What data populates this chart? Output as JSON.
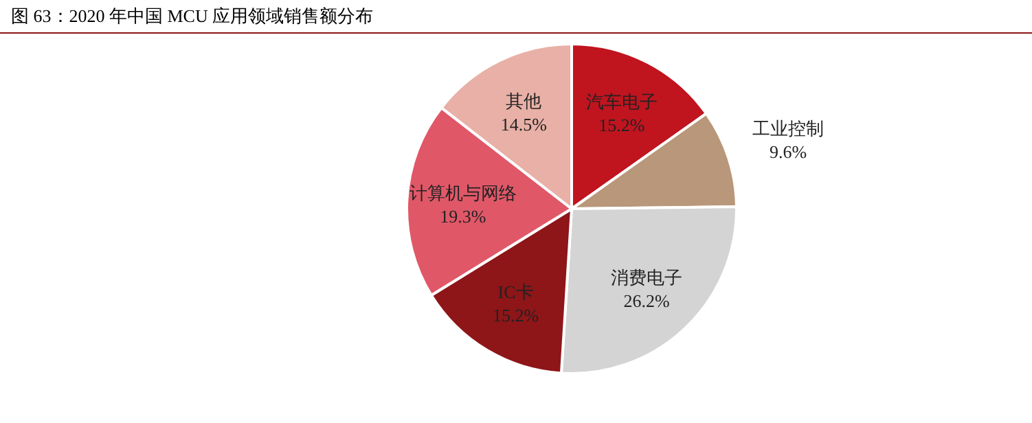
{
  "chart_data": {
    "type": "pie",
    "title": "图 63：2020 年中国 MCU 应用领域销售额分布",
    "categories": [
      "汽车电子",
      "工业控制",
      "消费电子",
      "IC卡",
      "计算机与网络",
      "其他"
    ],
    "values": [
      15.2,
      9.6,
      26.2,
      15.2,
      19.3,
      14.5
    ],
    "value_labels": [
      "15.2%",
      "9.6%",
      "26.2%",
      "15.2%",
      "19.3%",
      "14.5%"
    ],
    "colors": [
      "#c0141f",
      "#b8977a",
      "#d4d4d4",
      "#8e1518",
      "#e05868",
      "#e8b0a6"
    ],
    "legend": false
  }
}
